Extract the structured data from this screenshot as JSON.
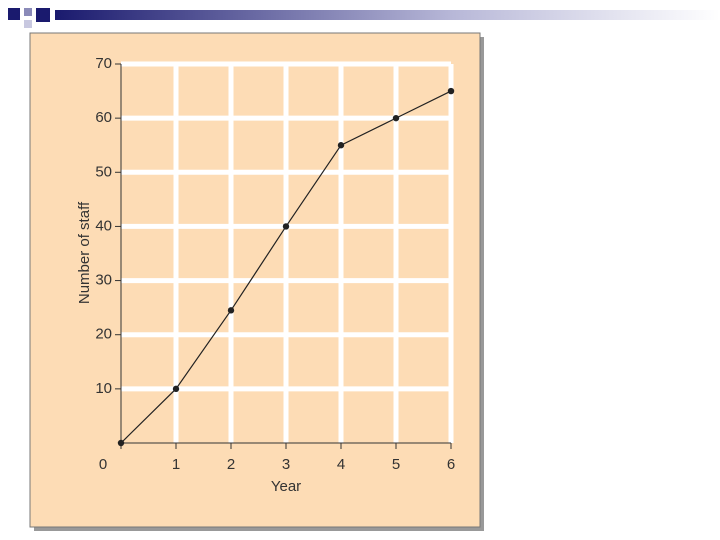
{
  "chart_data": {
    "type": "line",
    "x_label": "Year",
    "y_label": "Number of staff",
    "x": [
      0,
      1,
      2,
      3,
      4,
      5,
      6
    ],
    "series": [
      {
        "name": "Staff",
        "color": "#222222",
        "values": [
          0,
          10,
          24.5,
          40,
          55,
          60,
          65
        ]
      }
    ],
    "xlim": [
      0,
      6
    ],
    "xticks": [
      0,
      1,
      2,
      3,
      4,
      5,
      6
    ],
    "ylim": [
      0,
      70
    ],
    "yticks": [
      10,
      20,
      30,
      40,
      50,
      60,
      70
    ],
    "grid": true,
    "background": "#fddcb5"
  }
}
